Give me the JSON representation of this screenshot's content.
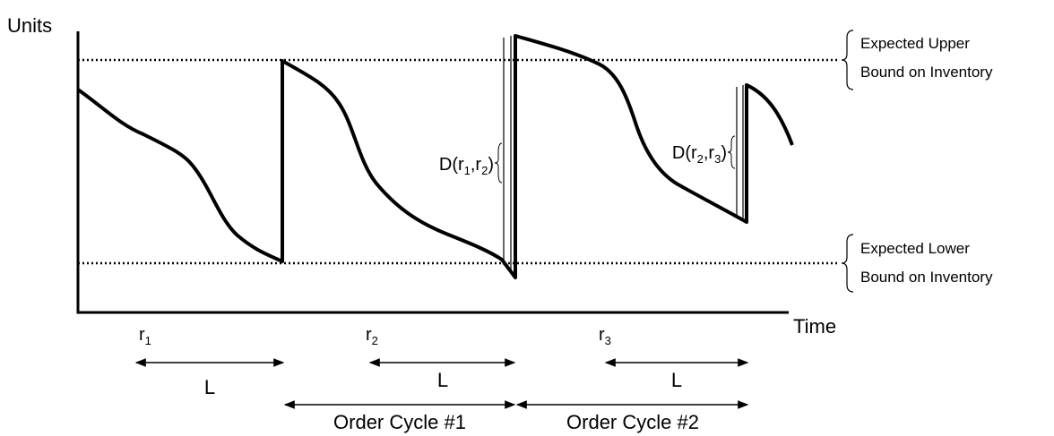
{
  "y_axis_label": "Units",
  "x_axis_label": "Time",
  "upper_bound": {
    "line1": "Expected Upper",
    "line2": "Bound on Inventory"
  },
  "lower_bound": {
    "line1": "Expected Lower",
    "line2": "Bound on Inventory"
  },
  "demand_labels": [
    {
      "parts": [
        "D(r",
        "1",
        ",r",
        "2",
        ")"
      ]
    },
    {
      "parts": [
        "D(r",
        "2",
        ",r",
        "3",
        ")"
      ]
    }
  ],
  "review_points": [
    {
      "base": "r",
      "sub": "1"
    },
    {
      "base": "r",
      "sub": "2"
    },
    {
      "base": "r",
      "sub": "3"
    }
  ],
  "lead_times": [
    "L",
    "L",
    "L"
  ],
  "order_cycles": [
    "Order Cycle #1",
    "Order Cycle #2"
  ]
}
